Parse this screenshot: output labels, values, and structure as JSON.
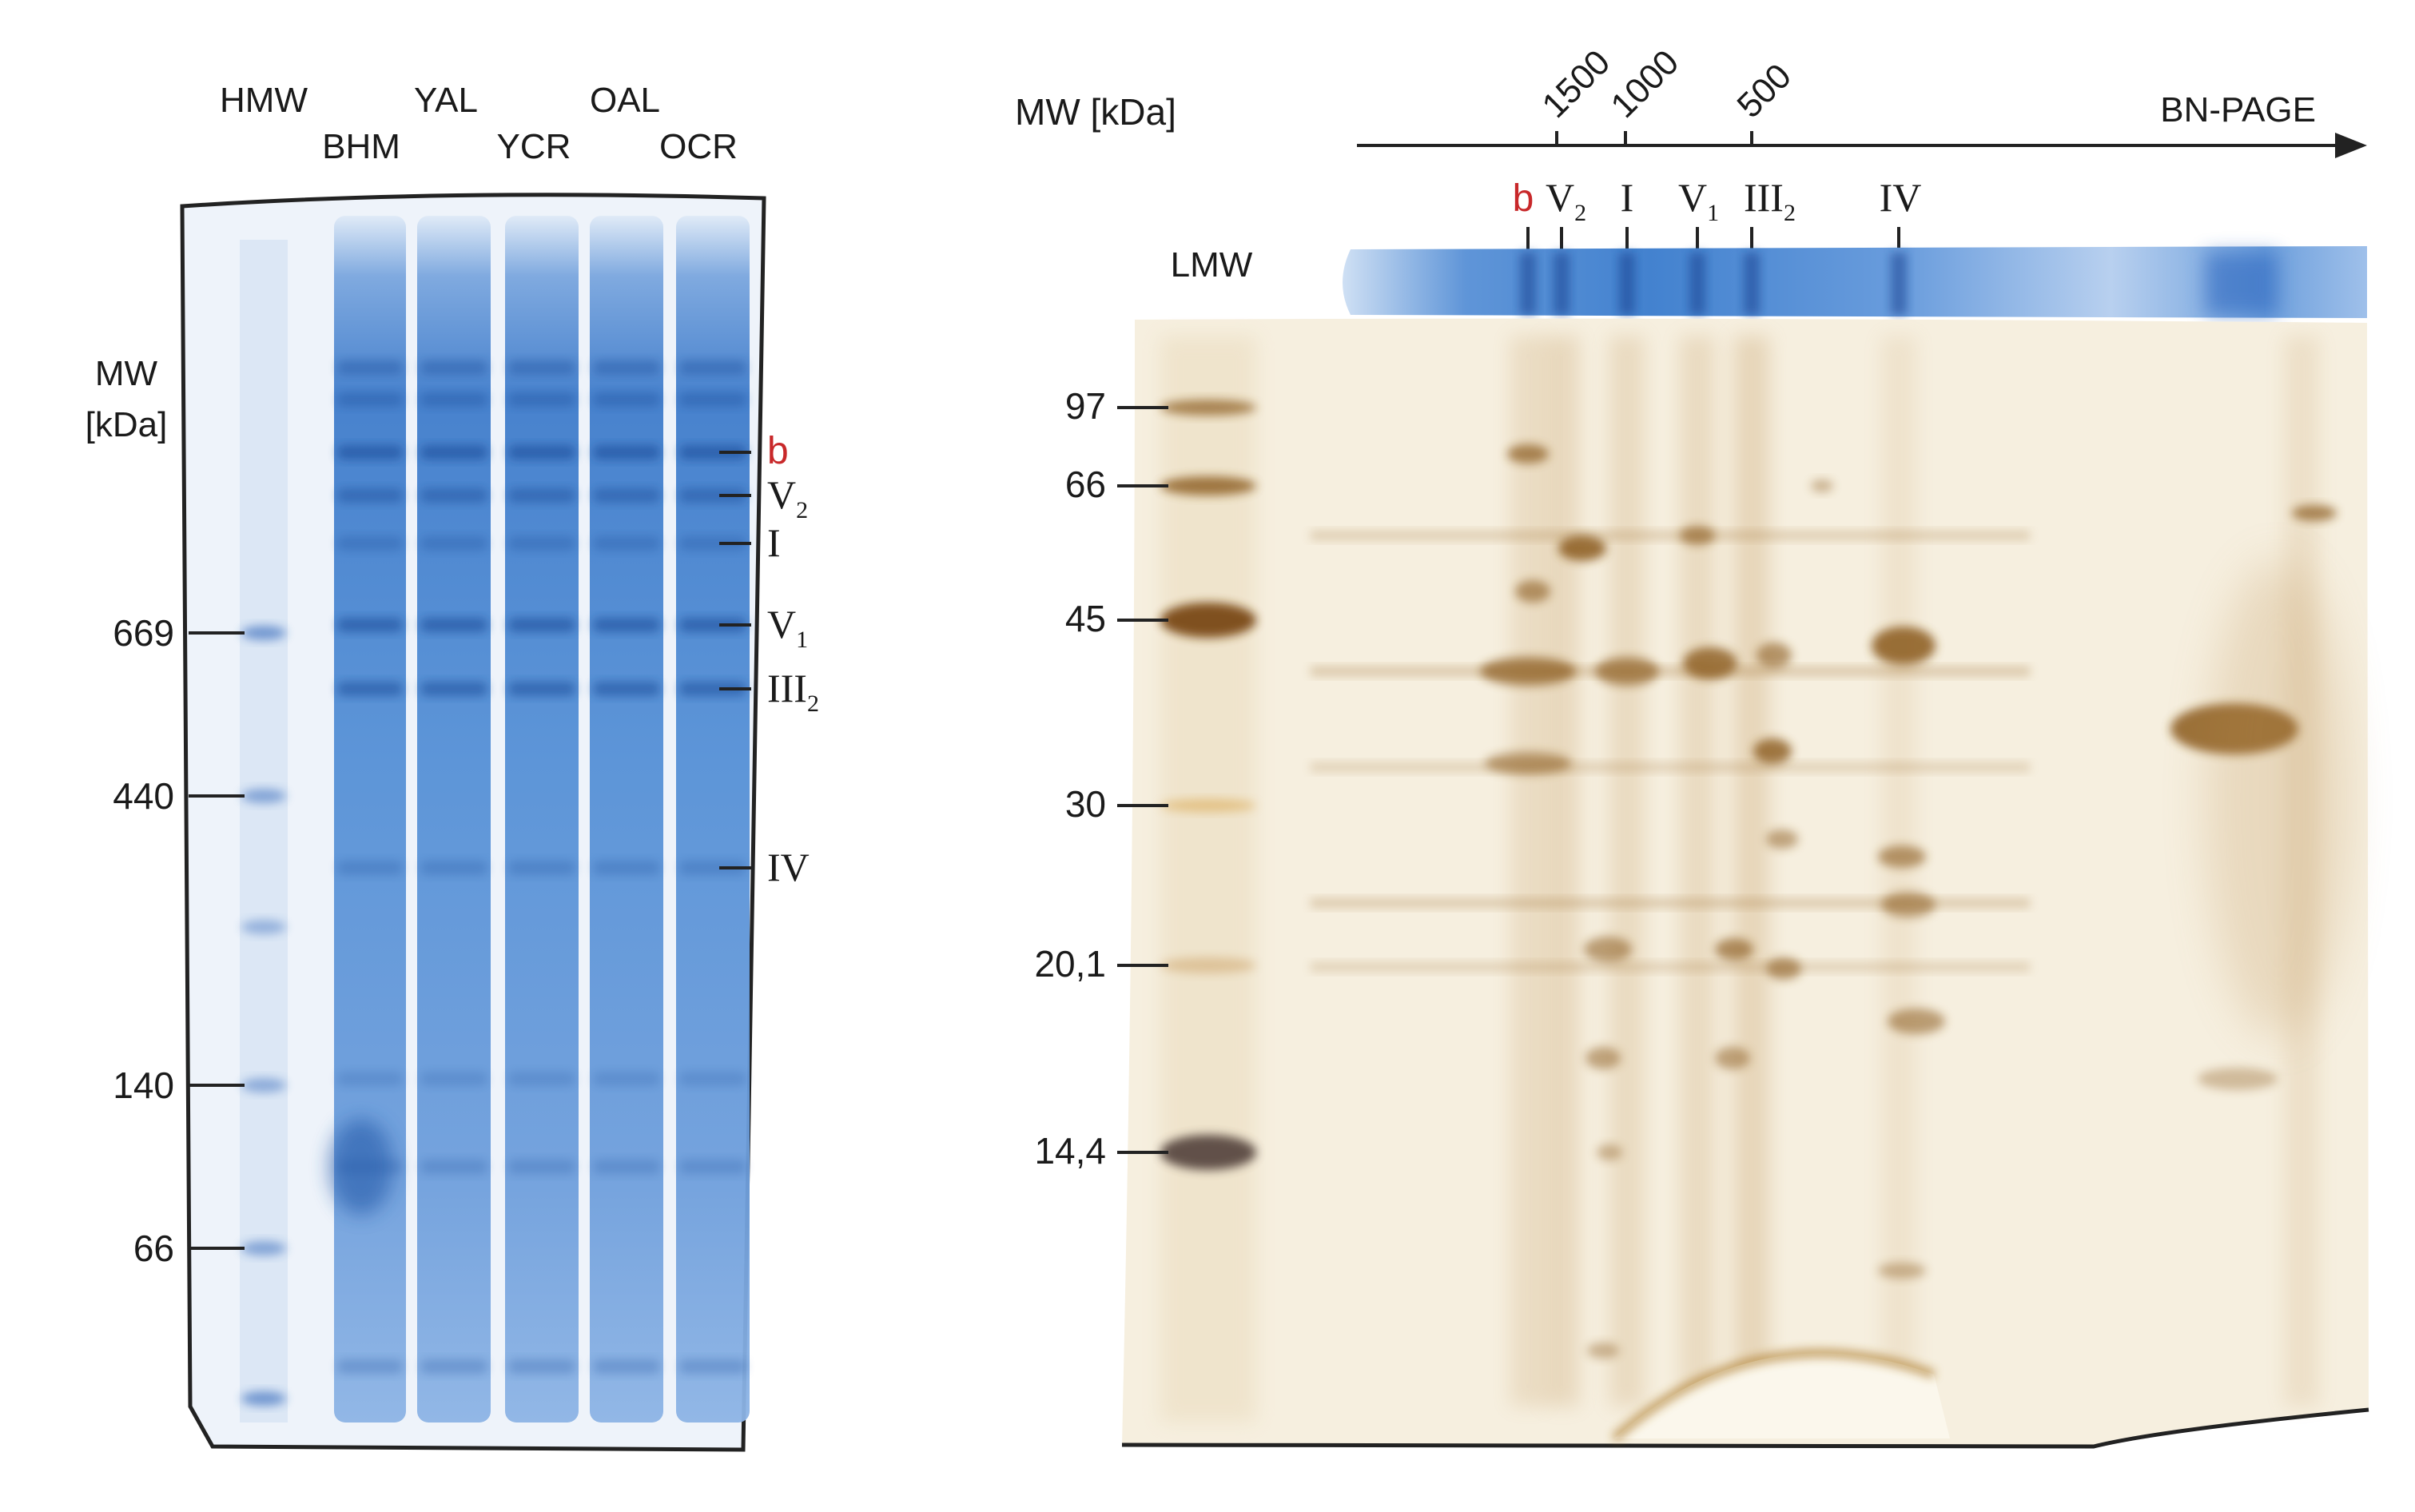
{
  "left_gel": {
    "lanes": [
      {
        "id": "hmw",
        "label": "HMW"
      },
      {
        "id": "bhm",
        "label": "BHM"
      },
      {
        "id": "yal",
        "label": "YAL"
      },
      {
        "id": "ycr",
        "label": "YCR"
      },
      {
        "id": "oal",
        "label": "OAL"
      },
      {
        "id": "ocr",
        "label": "OCR"
      }
    ],
    "mw_title_line1": "MW",
    "mw_title_line2": "[kDa]",
    "markers": [
      "669",
      "440",
      "140",
      "66"
    ],
    "complex_labels": {
      "b": "b",
      "v2_main": "V",
      "v2_sub": "2",
      "i": "I",
      "v1_main": "V",
      "v1_sub": "1",
      "iii2_main": "III",
      "iii2_sub": "2",
      "iv": "IV"
    }
  },
  "right_gel": {
    "mw_title": "MW [kDa]",
    "dimension_label": "BN-PAGE",
    "top_ticks": [
      "1500",
      "1000",
      "500"
    ],
    "lmw_label": "LMW",
    "complex_labels": {
      "b": "b",
      "v2_main": "V",
      "v2_sub": "2",
      "i": "I",
      "v1_main": "V",
      "v1_sub": "1",
      "iii2_main": "III",
      "iii2_sub": "2",
      "iv": "IV"
    },
    "markers": [
      "97",
      "66",
      "45",
      "30",
      "20,1",
      "14,4"
    ]
  },
  "colors": {
    "coomassie": "#3a78c9",
    "silver_background": "#f6efdf",
    "silver_spot": "#8a5a1c",
    "marker_red": "#c8282a"
  }
}
